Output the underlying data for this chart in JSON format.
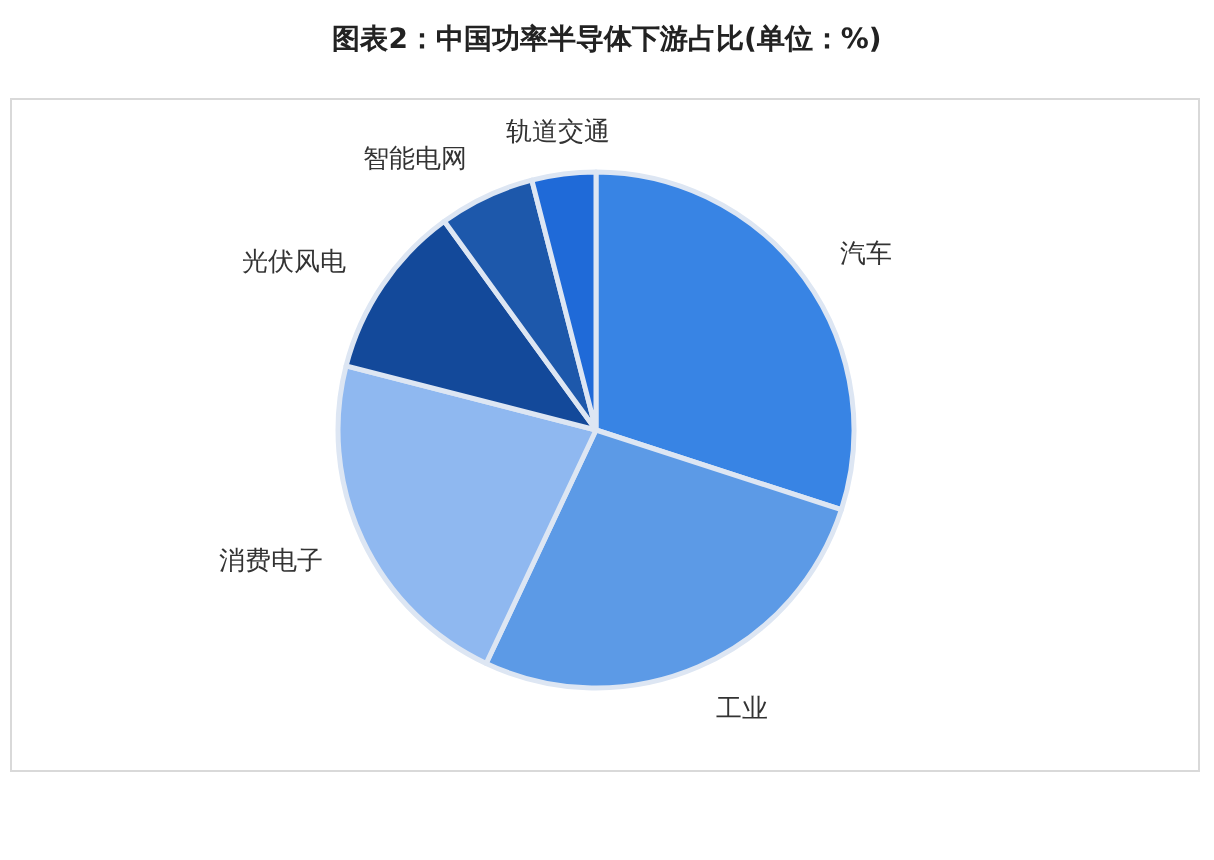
{
  "chart_data": {
    "type": "pie",
    "title": "图表2：中国功率半导体下游占比(单位：%)",
    "categories": [
      "汽车",
      "工业",
      "消费电子",
      "光伏风电",
      "智能电网",
      "轨道交通"
    ],
    "values": [
      30,
      27,
      22,
      11,
      6,
      4
    ],
    "colors": [
      "#3884e4",
      "#5c9ae6",
      "#8fb8f0",
      "#13499a",
      "#1d58ab",
      "#1f6ad8"
    ]
  }
}
